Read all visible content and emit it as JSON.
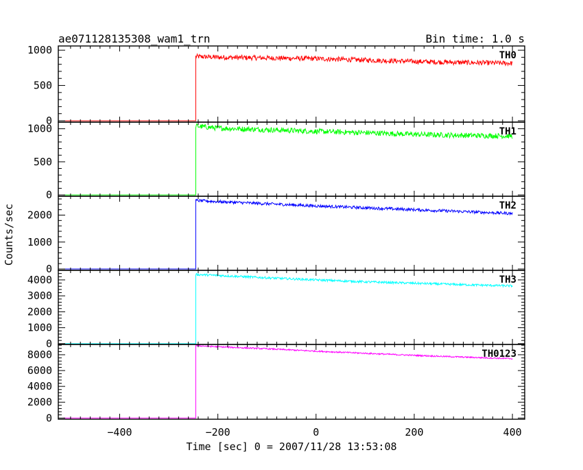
{
  "header": {
    "title": "ae071128135308_wam1_trn",
    "bin_time": "Bin time: 1.0 s"
  },
  "chart_data": {
    "type": "line",
    "xlabel": "Time [sec] 0 = 2007/11/28 13:53:08",
    "ylabel": "Counts/sec",
    "xlim": [
      -525,
      425
    ],
    "x_ticks": [
      -400,
      -200,
      0,
      200,
      400
    ],
    "x_tick_labels": [
      "−400",
      "−200",
      "0",
      "200",
      "400"
    ],
    "bin_time_s": 1.0,
    "onset_x": -245,
    "panels": [
      {
        "name": "TH0",
        "color": "#ff0000",
        "ylim": [
          -20,
          1060
        ],
        "y_ticks": [
          0,
          500,
          1000
        ],
        "y_tick_labels": [
          "0",
          "500",
          "1000"
        ],
        "x": [
          -515,
          -246,
          -245,
          -200,
          -100,
          0,
          100,
          200,
          300,
          400
        ],
        "y": [
          0,
          0,
          910,
          900,
          890,
          880,
          860,
          840,
          825,
          815
        ],
        "noise": 35
      },
      {
        "name": "TH1",
        "color": "#00ff00",
        "ylim": [
          -20,
          1100
        ],
        "y_ticks": [
          0,
          500,
          1000
        ],
        "y_tick_labels": [
          "0",
          "500",
          "1000"
        ],
        "x": [
          -515,
          -246,
          -245,
          -200,
          -100,
          0,
          100,
          200,
          300,
          400
        ],
        "y": [
          0,
          0,
          1040,
          1010,
          985,
          960,
          940,
          915,
          900,
          890
        ],
        "noise": 40
      },
      {
        "name": "TH2",
        "color": "#0000ff",
        "ylim": [
          -50,
          2700
        ],
        "y_ticks": [
          0,
          1000,
          2000
        ],
        "y_tick_labels": [
          "0",
          "1000",
          "2000"
        ],
        "x": [
          -515,
          -246,
          -245,
          -200,
          -100,
          0,
          100,
          200,
          300,
          400
        ],
        "y": [
          0,
          0,
          2540,
          2500,
          2420,
          2340,
          2270,
          2200,
          2130,
          2060
        ],
        "noise": 55
      },
      {
        "name": "TH3",
        "color": "#00ffff",
        "ylim": [
          -50,
          4600
        ],
        "y_ticks": [
          0,
          1000,
          2000,
          3000,
          4000
        ],
        "y_tick_labels": [
          "0",
          "1000",
          "2000",
          "3000",
          "4000"
        ],
        "x": [
          -515,
          -246,
          -245,
          -200,
          -100,
          0,
          100,
          200,
          300,
          400
        ],
        "y": [
          0,
          0,
          4340,
          4280,
          4130,
          4000,
          3880,
          3790,
          3700,
          3620
        ],
        "noise": 70
      },
      {
        "name": "TH0123",
        "color": "#ff00ff",
        "ylim": [
          -150,
          9300
        ],
        "y_ticks": [
          0,
          2000,
          4000,
          6000,
          8000
        ],
        "y_tick_labels": [
          "0",
          "2000",
          "4000",
          "6000",
          "8000"
        ],
        "x": [
          -515,
          -246,
          -245,
          -200,
          -100,
          0,
          100,
          200,
          300,
          400
        ],
        "y": [
          0,
          0,
          9150,
          9000,
          8750,
          8450,
          8180,
          7920,
          7700,
          7500
        ],
        "noise": 90
      }
    ]
  }
}
